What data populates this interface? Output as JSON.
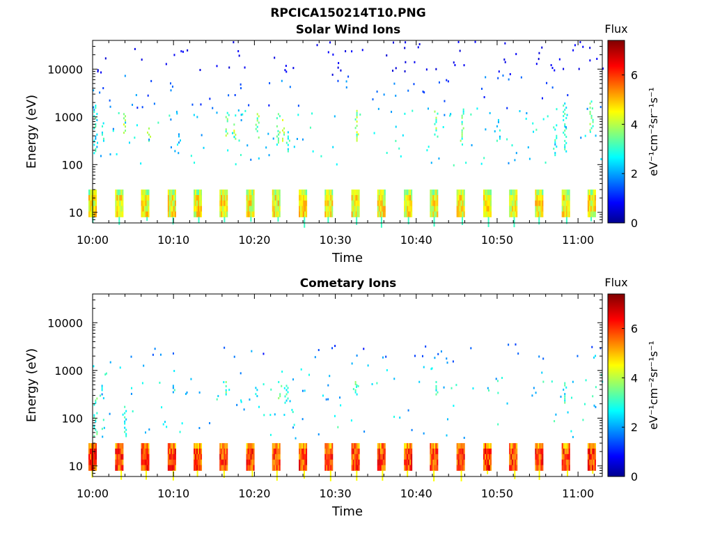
{
  "figure_title": "RPCICA150214T10.PNG",
  "chart_data": [
    {
      "type": "heatmap",
      "title": "Solar Wind Ions",
      "xlabel": "Time",
      "ylabel": "Energy (eV)",
      "y_scale": "log",
      "ylim": [
        6,
        40000
      ],
      "xlim": [
        "10:00",
        "11:03"
      ],
      "x_ticks": [
        "10:00",
        "10:10",
        "10:20",
        "10:30",
        "10:40",
        "10:50",
        "11:00"
      ],
      "y_ticks": [
        "10",
        "100",
        "1000",
        "10000"
      ],
      "colorbar": {
        "title": "Flux",
        "label": "eV⁻¹cm⁻²sr⁻¹s⁻¹",
        "range": [
          0,
          7.4
        ],
        "ticks": [
          "0",
          "2",
          "4",
          "6"
        ],
        "colormap": "jet"
      },
      "low_energy_band": {
        "energy_range_eV": [
          8,
          30
        ],
        "flux_level": 4.6
      },
      "scan_times_min": [
        0,
        3.3,
        6.5,
        9.8,
        13,
        16.2,
        19.5,
        22.7,
        26,
        29.2,
        32.5,
        35.7,
        39,
        42.2,
        45.5,
        48.8,
        52,
        55.2,
        58.5,
        61.7
      ],
      "features": [
        {
          "t": 0.2,
          "e": [
            150,
            1800
          ],
          "v": 2.8
        },
        {
          "t": 1.2,
          "e": [
            300,
            600
          ],
          "v": 3.0
        },
        {
          "t": 3.7,
          "e": [
            400,
            1200
          ],
          "v": 3.8
        },
        {
          "t": 6.8,
          "e": [
            300,
            600
          ],
          "v": 3.6
        },
        {
          "t": 10.5,
          "e": [
            250,
            500
          ],
          "v": 2.6
        },
        {
          "t": 16.5,
          "e": [
            350,
            1400
          ],
          "v": 3.6
        },
        {
          "t": 17.5,
          "e": [
            300,
            800
          ],
          "v": 3.9
        },
        {
          "t": 20.2,
          "e": [
            350,
            1200
          ],
          "v": 3.7
        },
        {
          "t": 22.8,
          "e": [
            250,
            1200
          ],
          "v": 3.4
        },
        {
          "t": 23.5,
          "e": [
            300,
            900
          ],
          "v": 3.8
        },
        {
          "t": 24.0,
          "e": [
            120,
            500
          ],
          "v": 2.8
        },
        {
          "t": 32.5,
          "e": [
            300,
            1400
          ],
          "v": 3.9
        },
        {
          "t": 42.3,
          "e": [
            300,
            1500
          ],
          "v": 3.6
        },
        {
          "t": 45.5,
          "e": [
            300,
            1500
          ],
          "v": 3.3
        },
        {
          "t": 50.0,
          "e": [
            300,
            900
          ],
          "v": 2.8
        },
        {
          "t": 57.0,
          "e": [
            150,
            700
          ],
          "v": 2.8
        },
        {
          "t": 58.2,
          "e": [
            180,
            2000
          ],
          "v": 3.0
        },
        {
          "t": 61.5,
          "e": [
            500,
            2200
          ],
          "v": 3.6
        }
      ]
    },
    {
      "type": "heatmap",
      "title": "Cometary Ions",
      "xlabel": "Time",
      "ylabel": "Energy (eV)",
      "y_scale": "log",
      "ylim": [
        6,
        40000
      ],
      "xlim": [
        "10:00",
        "11:03"
      ],
      "x_ticks": [
        "10:00",
        "10:10",
        "10:20",
        "10:30",
        "10:40",
        "10:50",
        "11:00"
      ],
      "y_ticks": [
        "10",
        "100",
        "1000",
        "10000"
      ],
      "colorbar": {
        "title": "Flux",
        "label": "eV⁻¹cm⁻²sr⁻¹s⁻¹",
        "range": [
          0,
          7.4
        ],
        "ticks": [
          "0",
          "2",
          "4",
          "6"
        ],
        "colormap": "jet"
      },
      "low_energy_band": {
        "energy_range_eV": [
          8,
          30
        ],
        "flux_level": 6.0
      },
      "scan_times_min": [
        0,
        3.3,
        6.5,
        9.8,
        13,
        16.2,
        19.5,
        22.7,
        26,
        29.2,
        32.5,
        35.7,
        39,
        42.2,
        45.5,
        48.8,
        52,
        55.2,
        58.5,
        61.7
      ],
      "features": [
        {
          "t": 0.2,
          "e": [
            40,
            300
          ],
          "v": 3.2
        },
        {
          "t": 1.0,
          "e": [
            300,
            500
          ],
          "v": 2.4
        },
        {
          "t": 3.8,
          "e": [
            40,
            200
          ],
          "v": 2.8
        },
        {
          "t": 9.8,
          "e": [
            300,
            500
          ],
          "v": 2.6
        },
        {
          "t": 16.5,
          "e": [
            300,
            600
          ],
          "v": 3.3
        },
        {
          "t": 20.0,
          "e": [
            250,
            500
          ],
          "v": 3.0
        },
        {
          "t": 23.0,
          "e": [
            250,
            600
          ],
          "v": 3.2
        },
        {
          "t": 23.8,
          "e": [
            200,
            500
          ],
          "v": 3.0
        },
        {
          "t": 32.5,
          "e": [
            300,
            600
          ],
          "v": 3.3
        },
        {
          "t": 42.3,
          "e": [
            300,
            600
          ],
          "v": 3.2
        },
        {
          "t": 58.2,
          "e": [
            200,
            700
          ],
          "v": 3.0
        },
        {
          "t": 61.8,
          "e": [
            1800,
            2300
          ],
          "v": 3.0
        }
      ]
    }
  ]
}
